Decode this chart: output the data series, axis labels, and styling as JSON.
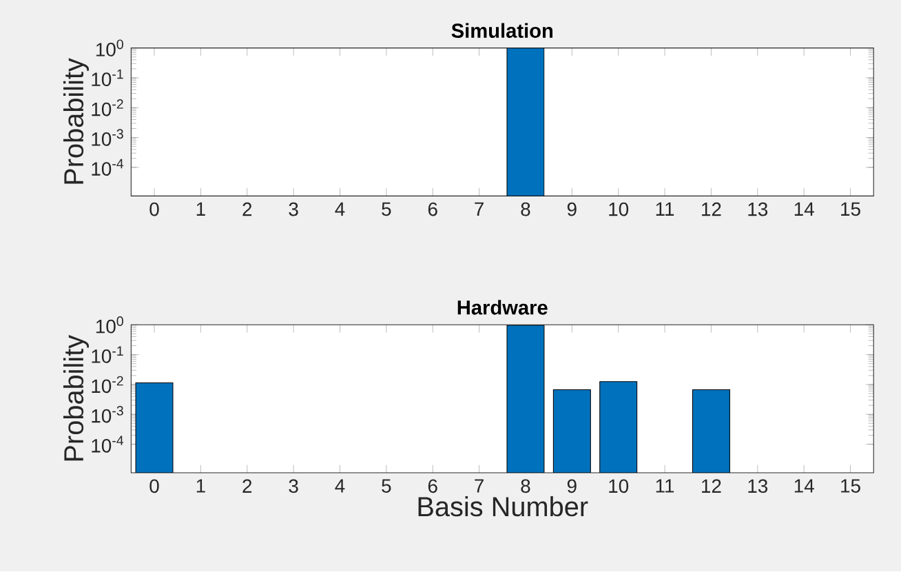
{
  "chart_data": [
    {
      "type": "bar",
      "title": "Simulation",
      "ylabel": "Probability",
      "log": "y",
      "color": "#0072bd",
      "categories": [
        "0",
        "1",
        "2",
        "3",
        "4",
        "5",
        "6",
        "7",
        "8",
        "9",
        "10",
        "11",
        "12",
        "13",
        "14",
        "15"
      ],
      "values": [
        null,
        null,
        null,
        null,
        null,
        null,
        null,
        null,
        1,
        null,
        null,
        null,
        null,
        null,
        null,
        null
      ],
      "ylim": [
        1.1e-05,
        1
      ],
      "yticks": [
        {
          "value": 0.0001,
          "label": "10$^{-4}$"
        },
        {
          "value": 0.001,
          "label": "10$^{-3}$"
        },
        {
          "value": 0.01,
          "label": "10$^{-2}$"
        },
        {
          "value": 0.1,
          "label": "10$^{-1}$"
        },
        {
          "value": 1,
          "label": "10$^{0}$"
        }
      ]
    },
    {
      "type": "bar",
      "title": "Hardware",
      "ylabel": "Probability",
      "xlabel": "Basis Number",
      "log": "y",
      "color": "#0072bd",
      "categories": [
        "0",
        "1",
        "2",
        "3",
        "4",
        "5",
        "6",
        "7",
        "8",
        "9",
        "10",
        "11",
        "12",
        "13",
        "14",
        "15"
      ],
      "values": [
        0.0114,
        null,
        null,
        null,
        null,
        null,
        null,
        null,
        0.96,
        0.0067,
        0.0125,
        null,
        0.0067,
        null,
        null,
        null
      ],
      "ylim": [
        1.1e-05,
        1
      ],
      "yticks": [
        {
          "value": 0.0001,
          "label": "10$^{-4}$"
        },
        {
          "value": 0.001,
          "label": "10$^{-3}$"
        },
        {
          "value": 0.01,
          "label": "10$^{-2}$"
        },
        {
          "value": 0.1,
          "label": "10$^{-1}$"
        },
        {
          "value": 1,
          "label": "10$^{0}$"
        }
      ]
    }
  ]
}
